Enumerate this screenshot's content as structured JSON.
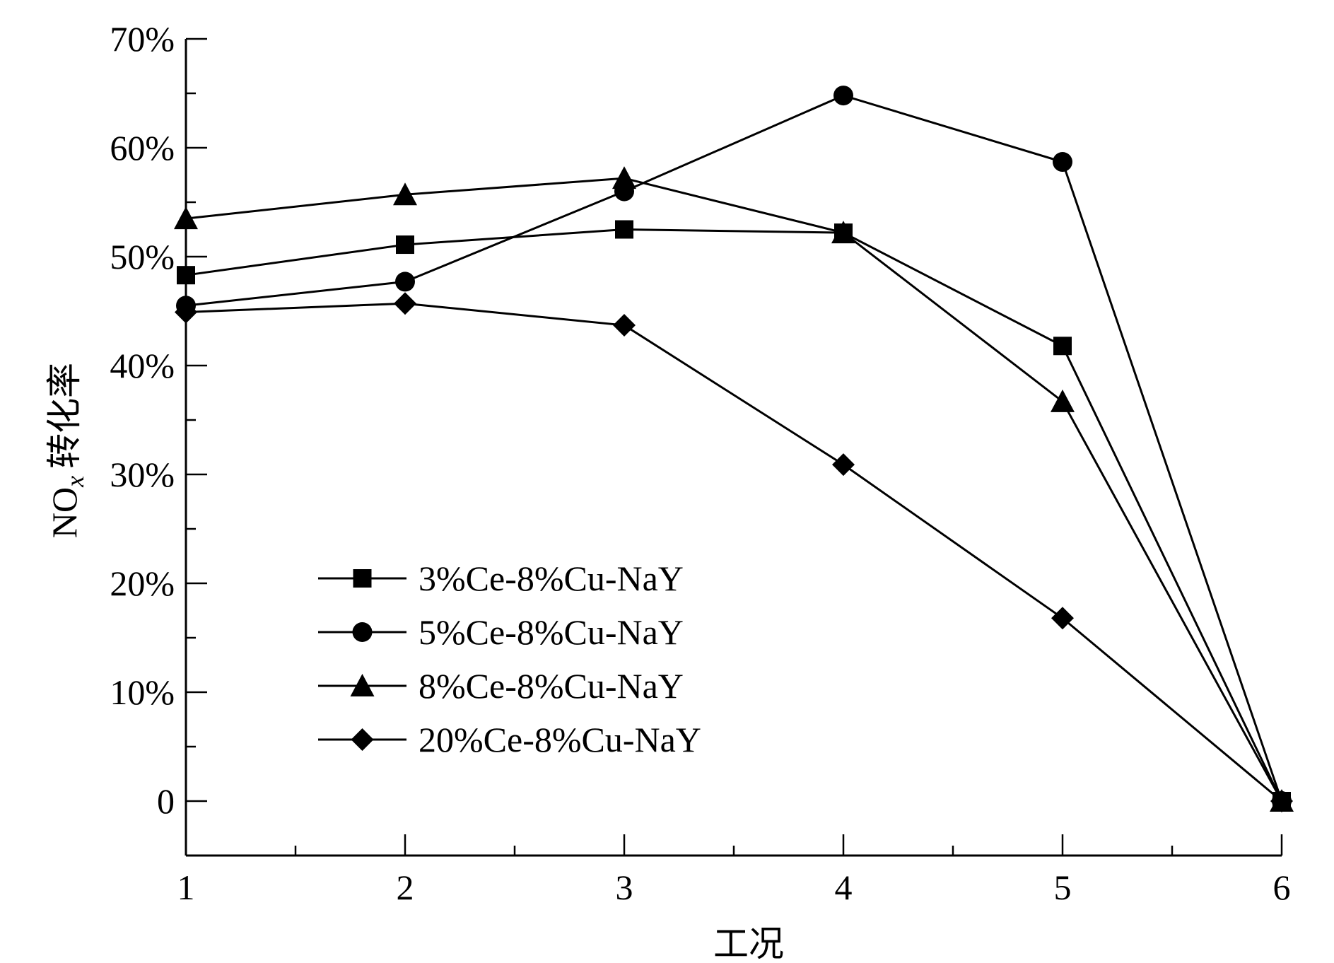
{
  "chart_data": {
    "type": "line",
    "title": "",
    "xlabel": "工况",
    "ylabel": "NOx 转化率",
    "ylabel_parts": {
      "species": "NO",
      "subscript": "x",
      "suffix": "转化率"
    },
    "x": [
      1,
      2,
      3,
      4,
      5,
      6
    ],
    "xlim": [
      1,
      6
    ],
    "ylim": [
      -5,
      70
    ],
    "x_ticks": [
      1,
      2,
      3,
      4,
      5,
      6
    ],
    "x_tick_labels": [
      "1",
      "2",
      "3",
      "4",
      "5",
      "6"
    ],
    "y_ticks": [
      0,
      10,
      20,
      30,
      40,
      50,
      60,
      70
    ],
    "y_tick_labels": [
      "0",
      "10%",
      "20%",
      "30%",
      "40%",
      "50%",
      "60%",
      "70%"
    ],
    "y_minor_step": 5,
    "x_minor_step": 0.5,
    "grid": false,
    "legend_position": "center-left",
    "color": "#000000",
    "series": [
      {
        "name": "3%Ce-8%Cu-NaY",
        "marker": "square",
        "values": [
          48.3,
          51.1,
          52.5,
          52.2,
          41.8,
          0
        ]
      },
      {
        "name": "5%Ce-8%Cu-NaY",
        "marker": "circle",
        "values": [
          45.5,
          47.7,
          56.0,
          64.8,
          58.7,
          0
        ]
      },
      {
        "name": "8%Ce-8%Cu-NaY",
        "marker": "triangle",
        "values": [
          53.5,
          55.7,
          57.2,
          52.2,
          36.7,
          0
        ]
      },
      {
        "name": "20%Ce-8%Cu-NaY",
        "marker": "diamond",
        "values": [
          44.9,
          45.7,
          43.7,
          30.9,
          16.8,
          0
        ]
      }
    ]
  }
}
